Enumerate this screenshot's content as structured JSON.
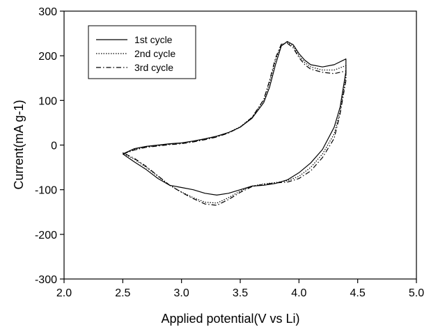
{
  "chart_data": {
    "type": "line",
    "title": "",
    "xlabel": "Applied potential(V vs Li)",
    "ylabel": "Current(mA g-1)",
    "xlim": [
      2.0,
      5.0
    ],
    "ylim": [
      -300,
      300
    ],
    "xticks": [
      "2.0",
      "2.5",
      "3.0",
      "3.5",
      "4.0",
      "4.5",
      "5.0"
    ],
    "yticks": [
      "-300",
      "-200",
      "-100",
      "0",
      "100",
      "200",
      "300"
    ],
    "grid": false,
    "legend_position": "top-left",
    "series": [
      {
        "name": "1st cycle",
        "style": "solid",
        "x": [
          2.5,
          2.6,
          2.7,
          2.8,
          2.9,
          3.0,
          3.1,
          3.2,
          3.3,
          3.4,
          3.5,
          3.6,
          3.7,
          3.75,
          3.8,
          3.85,
          3.9,
          3.95,
          4.0,
          4.05,
          4.1,
          4.2,
          4.3,
          4.4,
          4.4,
          4.35,
          4.3,
          4.2,
          4.1,
          4.0,
          3.9,
          3.8,
          3.7,
          3.6,
          3.5,
          3.4,
          3.3,
          3.2,
          3.1,
          3.0,
          2.9,
          2.8,
          2.7,
          2.6,
          2.5
        ],
        "y": [
          -20,
          -8,
          -3,
          0,
          3,
          5,
          9,
          14,
          20,
          28,
          40,
          60,
          95,
          130,
          180,
          222,
          232,
          225,
          205,
          190,
          180,
          175,
          180,
          193,
          165,
          85,
          40,
          -10,
          -40,
          -62,
          -78,
          -86,
          -90,
          -92,
          -100,
          -108,
          -112,
          -108,
          -100,
          -95,
          -90,
          -75,
          -55,
          -38,
          -20
        ]
      },
      {
        "name": "2nd cycle",
        "style": "dotted",
        "x": [
          2.5,
          2.6,
          2.7,
          2.8,
          2.9,
          3.0,
          3.1,
          3.2,
          3.3,
          3.4,
          3.5,
          3.6,
          3.7,
          3.75,
          3.8,
          3.85,
          3.9,
          3.95,
          4.0,
          4.05,
          4.1,
          4.2,
          4.3,
          4.4,
          4.4,
          4.35,
          4.3,
          4.2,
          4.1,
          4.0,
          3.9,
          3.8,
          3.7,
          3.6,
          3.5,
          3.4,
          3.3,
          3.2,
          3.1,
          3.0,
          2.9,
          2.8,
          2.7,
          2.6,
          2.5
        ],
        "y": [
          -20,
          -10,
          -4,
          -1,
          2,
          4,
          8,
          13,
          19,
          28,
          41,
          62,
          100,
          140,
          190,
          225,
          230,
          222,
          200,
          185,
          175,
          168,
          168,
          178,
          152,
          75,
          25,
          -20,
          -50,
          -70,
          -80,
          -84,
          -87,
          -92,
          -103,
          -118,
          -130,
          -128,
          -118,
          -105,
          -90,
          -70,
          -50,
          -32,
          -18
        ]
      },
      {
        "name": "3rd cycle",
        "style": "dashdot",
        "x": [
          2.5,
          2.6,
          2.7,
          2.8,
          2.9,
          3.0,
          3.1,
          3.2,
          3.3,
          3.4,
          3.5,
          3.6,
          3.7,
          3.75,
          3.8,
          3.85,
          3.9,
          3.95,
          4.0,
          4.05,
          4.1,
          4.2,
          4.3,
          4.4,
          4.4,
          4.35,
          4.3,
          4.2,
          4.1,
          4.0,
          3.9,
          3.8,
          3.7,
          3.6,
          3.5,
          3.4,
          3.3,
          3.2,
          3.1,
          3.0,
          2.9,
          2.8,
          2.7,
          2.6,
          2.5
        ],
        "y": [
          -20,
          -11,
          -5,
          -2,
          1,
          3,
          7,
          12,
          18,
          27,
          40,
          62,
          102,
          145,
          195,
          226,
          228,
          218,
          196,
          180,
          170,
          163,
          160,
          166,
          145,
          70,
          15,
          -28,
          -58,
          -75,
          -83,
          -85,
          -88,
          -93,
          -106,
          -122,
          -135,
          -132,
          -120,
          -106,
          -90,
          -69,
          -48,
          -30,
          -17
        ]
      }
    ]
  }
}
